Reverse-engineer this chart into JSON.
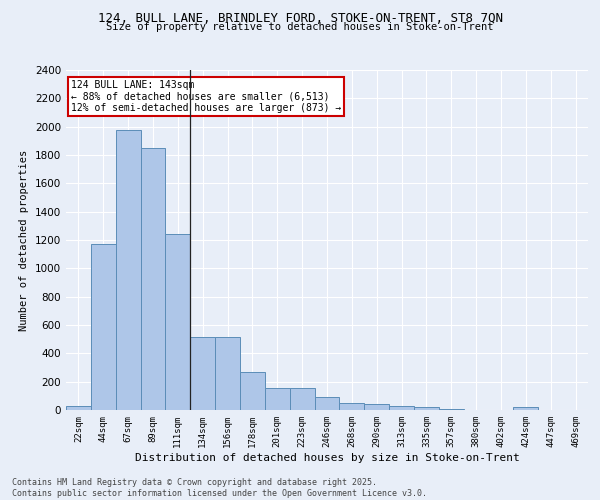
{
  "title_line1": "124, BULL LANE, BRINDLEY FORD, STOKE-ON-TRENT, ST8 7QN",
  "title_line2": "Size of property relative to detached houses in Stoke-on-Trent",
  "xlabel": "Distribution of detached houses by size in Stoke-on-Trent",
  "ylabel": "Number of detached properties",
  "categories": [
    "22sqm",
    "44sqm",
    "67sqm",
    "89sqm",
    "111sqm",
    "134sqm",
    "156sqm",
    "178sqm",
    "201sqm",
    "223sqm",
    "246sqm",
    "268sqm",
    "290sqm",
    "313sqm",
    "335sqm",
    "357sqm",
    "380sqm",
    "402sqm",
    "424sqm",
    "447sqm",
    "469sqm"
  ],
  "values": [
    25,
    1175,
    1975,
    1850,
    1240,
    515,
    515,
    270,
    155,
    155,
    90,
    50,
    40,
    25,
    20,
    5,
    0,
    0,
    20,
    0,
    0
  ],
  "bar_color": "#aec6e8",
  "bar_edge_color": "#5b8db8",
  "bg_color": "#e8eef8",
  "grid_color": "#ffffff",
  "annotation_title": "124 BULL LANE: 143sqm",
  "annotation_line1": "← 88% of detached houses are smaller (6,513)",
  "annotation_line2": "12% of semi-detached houses are larger (873) →",
  "annotation_box_facecolor": "#ffffff",
  "annotation_box_edgecolor": "#cc0000",
  "marker_line_index": 5,
  "ylim": [
    0,
    2400
  ],
  "yticks": [
    0,
    200,
    400,
    600,
    800,
    1000,
    1200,
    1400,
    1600,
    1800,
    2000,
    2200,
    2400
  ],
  "footer_line1": "Contains HM Land Registry data © Crown copyright and database right 2025.",
  "footer_line2": "Contains public sector information licensed under the Open Government Licence v3.0."
}
